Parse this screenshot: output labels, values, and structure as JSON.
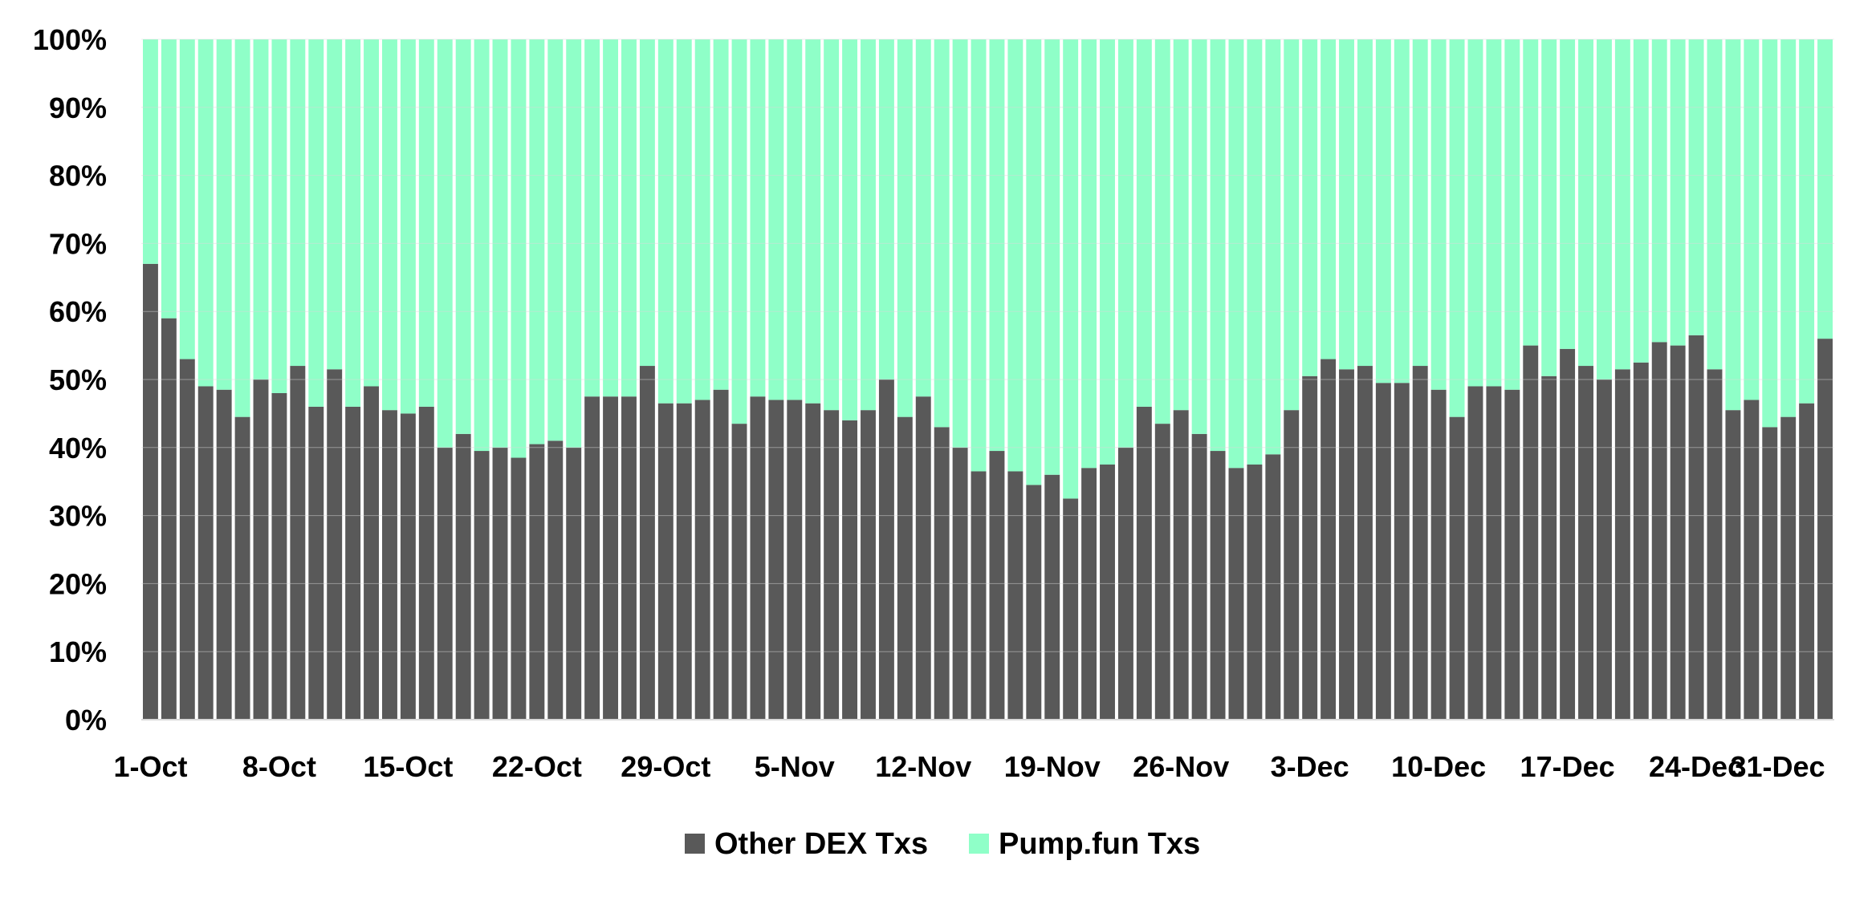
{
  "chart_data": {
    "type": "bar",
    "stacked": true,
    "percent_stacked": true,
    "title": "",
    "xlabel": "",
    "ylabel": "",
    "ylim": [
      0,
      100
    ],
    "y_ticks": [
      "0%",
      "10%",
      "20%",
      "30%",
      "40%",
      "50%",
      "60%",
      "70%",
      "80%",
      "90%",
      "100%"
    ],
    "x_tick_labels": [
      {
        "index": 0,
        "label": "1-Oct"
      },
      {
        "index": 7,
        "label": "8-Oct"
      },
      {
        "index": 14,
        "label": "15-Oct"
      },
      {
        "index": 21,
        "label": "22-Oct"
      },
      {
        "index": 28,
        "label": "29-Oct"
      },
      {
        "index": 35,
        "label": "5-Nov"
      },
      {
        "index": 42,
        "label": "12-Nov"
      },
      {
        "index": 49,
        "label": "19-Nov"
      },
      {
        "index": 56,
        "label": "26-Nov"
      },
      {
        "index": 63,
        "label": "3-Dec"
      },
      {
        "index": 70,
        "label": "10-Dec"
      },
      {
        "index": 77,
        "label": "17-Dec"
      },
      {
        "index": 84,
        "label": "24-Dec"
      },
      {
        "index": 91,
        "label": "31-Dec"
      }
    ],
    "grid": true,
    "legend_position": "bottom",
    "categories": [
      "1-Oct",
      "2-Oct",
      "3-Oct",
      "4-Oct",
      "5-Oct",
      "6-Oct",
      "7-Oct",
      "8-Oct",
      "9-Oct",
      "10-Oct",
      "11-Oct",
      "12-Oct",
      "13-Oct",
      "14-Oct",
      "15-Oct",
      "16-Oct",
      "17-Oct",
      "18-Oct",
      "19-Oct",
      "20-Oct",
      "21-Oct",
      "22-Oct",
      "23-Oct",
      "24-Oct",
      "25-Oct",
      "26-Oct",
      "27-Oct",
      "28-Oct",
      "29-Oct",
      "30-Oct",
      "31-Oct",
      "1-Nov",
      "2-Nov",
      "3-Nov",
      "4-Nov",
      "5-Nov",
      "6-Nov",
      "7-Nov",
      "8-Nov",
      "9-Nov",
      "10-Nov",
      "11-Nov",
      "12-Nov",
      "13-Nov",
      "14-Nov",
      "15-Nov",
      "16-Nov",
      "17-Nov",
      "18-Nov",
      "19-Nov",
      "20-Nov",
      "21-Nov",
      "22-Nov",
      "23-Nov",
      "24-Nov",
      "25-Nov",
      "26-Nov",
      "27-Nov",
      "28-Nov",
      "29-Nov",
      "30-Nov",
      "1-Dec",
      "2-Dec",
      "3-Dec",
      "4-Dec",
      "5-Dec",
      "6-Dec",
      "7-Dec",
      "8-Dec",
      "9-Dec",
      "10-Dec",
      "11-Dec",
      "12-Dec",
      "13-Dec",
      "14-Dec",
      "15-Dec",
      "16-Dec",
      "17-Dec",
      "18-Dec",
      "19-Dec",
      "20-Dec",
      "21-Dec",
      "22-Dec",
      "23-Dec",
      "24-Dec",
      "25-Dec",
      "26-Dec",
      "27-Dec",
      "28-Dec",
      "29-Dec",
      "30-Dec",
      "31-Dec"
    ],
    "series": [
      {
        "name": "Other DEX Txs",
        "color": "#595959",
        "values": [
          67,
          59,
          53,
          49,
          48.5,
          44.5,
          50,
          48,
          52,
          46,
          51.5,
          46,
          49,
          45.5,
          45,
          46,
          40,
          42,
          39.5,
          40,
          38.5,
          40.5,
          41,
          40,
          47.5,
          47.5,
          47.5,
          52,
          46.5,
          46.5,
          47,
          48.5,
          43.5,
          47.5,
          47,
          47,
          46.5,
          45.5,
          44,
          45.5,
          50,
          44.5,
          47.5,
          43,
          40,
          36.5,
          39.5,
          36.5,
          34.5,
          36,
          32.5,
          37,
          37.5,
          40,
          46,
          43.5,
          45.5,
          42,
          39.5,
          37,
          37.5,
          39,
          45.5,
          50.5,
          53,
          51.5,
          52,
          49.5,
          49.5,
          52,
          48.5,
          44.5,
          49,
          49,
          48.5,
          55,
          50.5,
          54.5,
          52,
          50,
          51.5,
          52.5,
          55.5,
          55,
          56.5,
          51.5,
          45.5,
          47,
          43,
          44.5,
          46.5,
          56
        ]
      },
      {
        "name": "Pump.fun Txs",
        "color": "#8FFFC8",
        "values": [
          33,
          41,
          47,
          51,
          51.5,
          55.5,
          50,
          52,
          48,
          54,
          48.5,
          54,
          51,
          54.5,
          55,
          54,
          60,
          58,
          60.5,
          60,
          61.5,
          59.5,
          59,
          60,
          52.5,
          52.5,
          52.5,
          48,
          53.5,
          53.5,
          53,
          51.5,
          56.5,
          52.5,
          53,
          53,
          53.5,
          54.5,
          56,
          54.5,
          50,
          55.5,
          52.5,
          57,
          60,
          63.5,
          60.5,
          63.5,
          65.5,
          64,
          67.5,
          63,
          62.5,
          60,
          54,
          56.5,
          54.5,
          58,
          60.5,
          63,
          62.5,
          61,
          54.5,
          49.5,
          47,
          48.5,
          48,
          50.5,
          50.5,
          48,
          51.5,
          55.5,
          51,
          51,
          51.5,
          45,
          49.5,
          45.5,
          48,
          50,
          48.5,
          47.5,
          44.5,
          45,
          43.5,
          48.5,
          54.5,
          53,
          57,
          55.5,
          53.5,
          44
        ]
      }
    ]
  },
  "legend": {
    "items": [
      {
        "label": "Other DEX Txs",
        "color": "#595959"
      },
      {
        "label": "Pump.fun Txs",
        "color": "#8FFFC8"
      }
    ]
  }
}
